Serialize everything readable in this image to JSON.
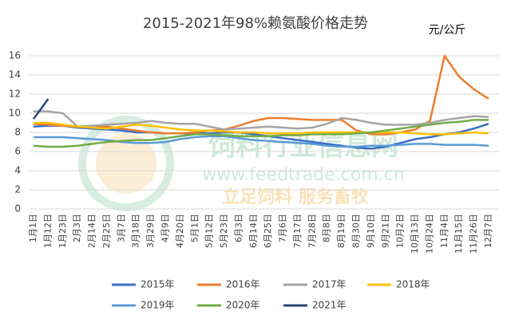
{
  "chart_data": {
    "type": "line",
    "title": "2015-2021年98%赖氨酸价格走势",
    "unit": "元/公斤",
    "categories": [
      "1月1日",
      "1月12日",
      "1月23日",
      "2月3日",
      "2月14日",
      "2月25日",
      "3月7日",
      "3月18日",
      "3月29日",
      "4月9日",
      "4月20日",
      "5月1日",
      "5月12日",
      "5月23日",
      "6月3日",
      "6月14日",
      "6月25日",
      "7月6日",
      "7月17日",
      "7月28日",
      "8月8日",
      "8月19日",
      "8月30日",
      "9月10日",
      "9月21日",
      "10月2日",
      "10月13日",
      "10月24日",
      "11月4日",
      "11月15日",
      "11月26日",
      "12月7日"
    ],
    "series": [
      {
        "name": "2015年",
        "color": "#3a6fc4",
        "values": [
          8.6,
          8.7,
          8.7,
          8.5,
          8.4,
          8.3,
          8.2,
          8.0,
          8.0,
          7.9,
          7.9,
          7.9,
          7.9,
          8.0,
          8.0,
          7.8,
          7.6,
          7.4,
          7.2,
          7.0,
          6.8,
          6.6,
          6.4,
          6.3,
          6.5,
          6.9,
          7.3,
          7.5,
          7.8,
          8.0,
          8.4,
          8.9
        ]
      },
      {
        "name": "2016年",
        "color": "#ed7d31",
        "values": [
          8.9,
          8.8,
          8.7,
          8.6,
          8.6,
          8.6,
          8.4,
          8.2,
          8.0,
          7.9,
          7.9,
          8.0,
          8.2,
          8.3,
          8.7,
          9.2,
          9.5,
          9.5,
          9.4,
          9.3,
          9.3,
          9.3,
          8.2,
          7.8,
          7.8,
          8.0,
          8.3,
          9.2,
          16.0,
          13.8,
          12.5,
          11.5
        ]
      },
      {
        "name": "2017年",
        "color": "#a5a5a5",
        "values": [
          10.2,
          10.2,
          10.0,
          8.6,
          8.7,
          8.8,
          8.9,
          9.0,
          9.2,
          9.0,
          8.9,
          8.9,
          8.6,
          8.3,
          8.4,
          8.5,
          8.6,
          8.5,
          8.4,
          8.5,
          8.9,
          9.5,
          9.3,
          9.0,
          8.8,
          8.8,
          8.8,
          9.0,
          9.3,
          9.5,
          9.7,
          9.6
        ]
      },
      {
        "name": "2018年",
        "color": "#ffc000",
        "values": [
          9.0,
          9.0,
          8.8,
          8.6,
          8.5,
          8.4,
          8.6,
          8.8,
          8.7,
          8.5,
          8.3,
          8.2,
          8.2,
          8.1,
          8.0,
          8.0,
          7.9,
          7.9,
          7.9,
          8.0,
          8.0,
          8.0,
          8.0,
          8.0,
          8.0,
          8.0,
          7.9,
          7.8,
          7.8,
          7.9,
          8.0,
          7.9
        ]
      },
      {
        "name": "2019年",
        "color": "#5b9bd5",
        "values": [
          7.5,
          7.5,
          7.5,
          7.4,
          7.3,
          7.2,
          7.0,
          6.9,
          6.9,
          7.0,
          7.3,
          7.5,
          7.6,
          7.6,
          7.4,
          7.2,
          7.1,
          7.0,
          6.9,
          6.8,
          6.6,
          6.5,
          6.5,
          6.6,
          6.6,
          6.7,
          6.8,
          6.8,
          6.7,
          6.7,
          6.7,
          6.6
        ]
      },
      {
        "name": "2020年",
        "color": "#70ad47",
        "values": [
          6.6,
          6.5,
          6.5,
          6.6,
          6.8,
          7.0,
          7.1,
          7.2,
          7.2,
          7.4,
          7.6,
          7.8,
          7.8,
          7.7,
          7.6,
          7.6,
          7.6,
          7.7,
          7.7,
          7.8,
          7.8,
          7.8,
          7.9,
          8.0,
          8.2,
          8.4,
          8.6,
          8.8,
          9.0,
          9.1,
          9.3,
          9.3
        ]
      },
      {
        "name": "2021年",
        "color": "#264478",
        "values": [
          9.4,
          11.5,
          null,
          null,
          null,
          null,
          null,
          null,
          null,
          null,
          null,
          null,
          null,
          null,
          null,
          null,
          null,
          null,
          null,
          null,
          null,
          null,
          null,
          null,
          null,
          null,
          null,
          null,
          null,
          null,
          null,
          null
        ]
      }
    ],
    "ylim": [
      0,
      16
    ],
    "yticks": [
      0,
      2,
      4,
      6,
      8,
      10,
      12,
      14,
      16
    ],
    "grid": true,
    "watermark": {
      "site": "饲料行业信息网",
      "url": "www.feedtrade.com.cn",
      "slogan": "立足饲料  服务畜牧"
    }
  }
}
